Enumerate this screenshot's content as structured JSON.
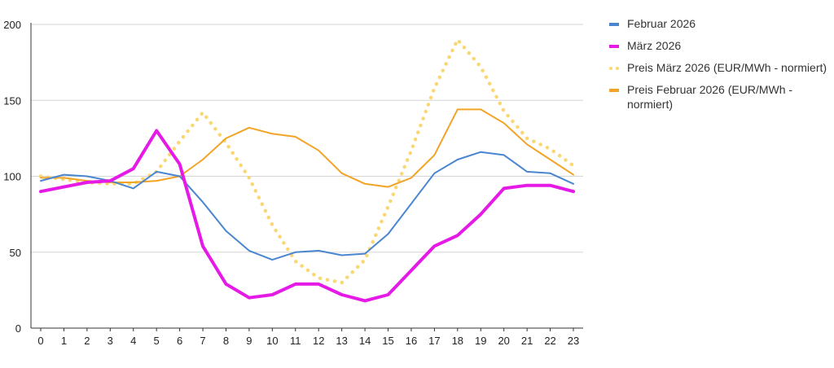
{
  "chart_data": {
    "type": "line",
    "title": "",
    "xlabel": "",
    "ylabel": "",
    "ylim": [
      0,
      200
    ],
    "yticks": [
      0,
      50,
      100,
      150,
      200
    ],
    "grid": true,
    "legend_position": "right",
    "x": [
      0,
      1,
      2,
      3,
      4,
      5,
      6,
      7,
      8,
      9,
      10,
      11,
      12,
      13,
      14,
      15,
      16,
      17,
      18,
      19,
      20,
      21,
      22,
      23
    ],
    "x_labels": [
      "0",
      "1",
      "2",
      "3",
      "4",
      "5",
      "6",
      "7",
      "8",
      "9",
      "10",
      "11",
      "12",
      "13",
      "14",
      "15",
      "16",
      "17",
      "18",
      "19",
      "20",
      "21",
      "22",
      "23"
    ],
    "y_labels": [
      "0",
      "50",
      "100",
      "150",
      "200"
    ],
    "series": [
      {
        "name": "Februar 2026",
        "color": "#4a86d0",
        "style": "solid",
        "weight": "thin",
        "values": [
          97,
          101,
          100,
          97,
          92,
          103,
          100,
          83,
          64,
          51,
          45,
          50,
          51,
          48,
          49,
          62,
          82,
          102,
          111,
          116,
          114,
          103,
          102,
          95
        ]
      },
      {
        "name": "März 2026",
        "color": "#e61ae6",
        "style": "solid",
        "weight": "thick",
        "values": [
          90,
          93,
          96,
          97,
          105,
          130,
          108,
          54,
          29,
          20,
          22,
          29,
          29,
          22,
          18,
          22,
          38,
          54,
          61,
          75,
          92,
          94,
          94,
          90
        ]
      },
      {
        "name": "Preis März 2026 (EUR/MWh - normiert)",
        "color": "#f9d772",
        "style": "dotted",
        "weight": "thick",
        "values": [
          100,
          98,
          96,
          95,
          95,
          103,
          123,
          142,
          122,
          99,
          68,
          44,
          33,
          30,
          45,
          80,
          117,
          158,
          190,
          172,
          143,
          125,
          118,
          107
        ]
      },
      {
        "name": "Preis Februar 2026 (EUR/MWh - normiert)",
        "color": "#f3a326",
        "style": "solid",
        "weight": "thin",
        "values": [
          99,
          99,
          97,
          96,
          96,
          97,
          100,
          111,
          125,
          132,
          128,
          126,
          117,
          102,
          95,
          93,
          99,
          114,
          144,
          144,
          135,
          121,
          111,
          101
        ]
      }
    ]
  }
}
